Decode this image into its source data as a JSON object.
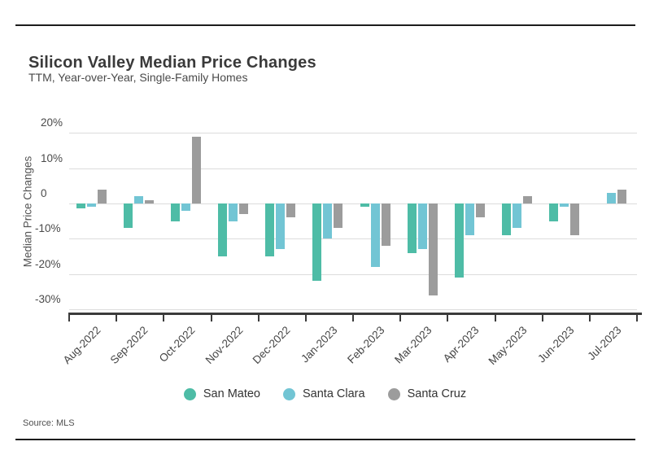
{
  "chart_data": {
    "type": "bar",
    "title": "Silicon Valley Median Price Changes",
    "subtitle": "TTM, Year-over-Year, Single-Family Homes",
    "source": "Source: MLS",
    "ylabel": "Median Price Changes",
    "xlabel": "",
    "unit": "%",
    "grid": true,
    "legend_position": "bottom",
    "ylim": [
      -31,
      24
    ],
    "yticks": [
      {
        "value": 20,
        "label": "20%"
      },
      {
        "value": 10,
        "label": "10%"
      },
      {
        "value": 0,
        "label": "0"
      },
      {
        "value": -10,
        "label": "-10%"
      },
      {
        "value": -20,
        "label": "-20%"
      },
      {
        "value": -30,
        "label": "-30%"
      }
    ],
    "categories": [
      "Aug-2022",
      "Sep-2022",
      "Oct-2022",
      "Nov-2022",
      "Dec-2022",
      "Jan-2023",
      "Feb-2023",
      "Mar-2023",
      "Apr-2023",
      "May-2023",
      "Jun-2023",
      "Jul-2023"
    ],
    "series": [
      {
        "name": "San Mateo",
        "color": "#4EBCA6",
        "values": [
          -1.5,
          -7,
          -5,
          -15,
          -15,
          -22,
          -1,
          -14,
          -21,
          -9,
          -5,
          0
        ]
      },
      {
        "name": "Santa Clara",
        "color": "#72C5D4",
        "values": [
          -1,
          2,
          -2,
          -5,
          -13,
          -10,
          -18,
          -13,
          -9,
          -7,
          -1,
          3
        ]
      },
      {
        "name": "Santa Cruz",
        "color": "#9C9C9C",
        "values": [
          4,
          1,
          19,
          -3,
          -4,
          -7,
          -12,
          -26,
          -4,
          2,
          -9,
          4
        ]
      }
    ]
  }
}
